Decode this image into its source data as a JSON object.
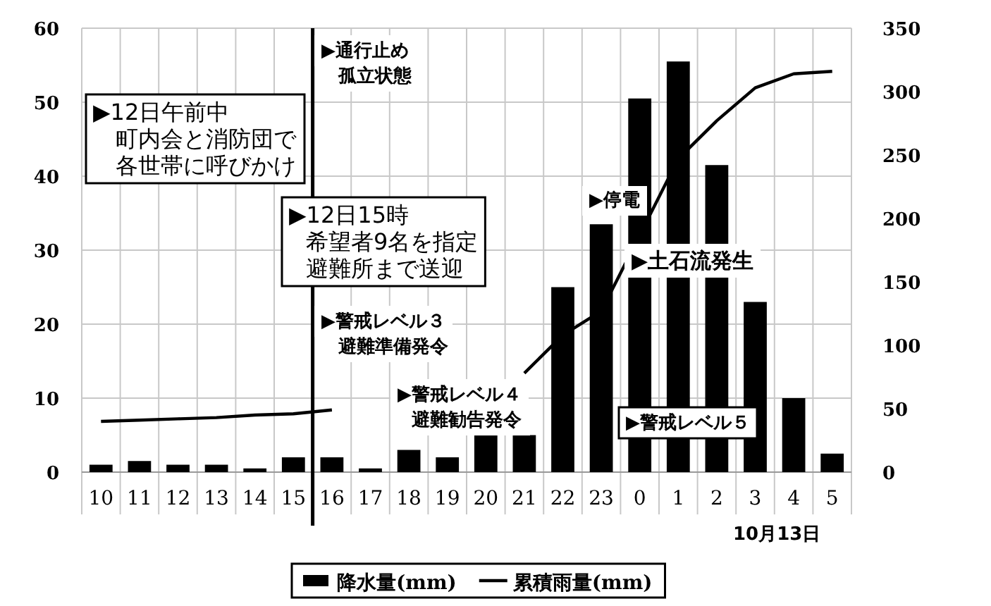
{
  "chart_data": {
    "type": "bar",
    "categories": [
      "10",
      "11",
      "12",
      "13",
      "14",
      "15",
      "16",
      "17",
      "18",
      "19",
      "20",
      "21",
      "22",
      "23",
      "0",
      "1",
      "2",
      "3",
      "4",
      "5"
    ],
    "series": [
      {
        "name": "降水量(mm)",
        "color": "#000000",
        "values": [
          1,
          1.5,
          1,
          1,
          0.5,
          2,
          2,
          0.5,
          3,
          2,
          5,
          5,
          25,
          33.5,
          50.5,
          55.5,
          41.5,
          23,
          10,
          2.5
        ]
      },
      {
        "name": "累積雨量(mm)",
        "type": "line",
        "axis": "y2",
        "color": "#000000",
        "values": [
          40,
          41,
          42,
          43,
          45,
          46,
          49,
          null,
          null,
          null,
          null,
          78,
          108,
          127,
          187,
          247,
          277,
          303,
          314,
          316
        ]
      }
    ],
    "ylim": [
      0,
      60
    ],
    "yticks": [
      0,
      10,
      20,
      30,
      40,
      50,
      60
    ],
    "y2lim": [
      0,
      350
    ],
    "y2ticks": [
      0,
      50,
      100,
      150,
      200,
      250,
      300,
      350
    ],
    "grid": true,
    "legend": "bottom",
    "marker": "none",
    "line_style": "solid",
    "ref_lines": [
      {
        "axis": "x",
        "value": "16",
        "color": "#000000"
      }
    ],
    "annotations": [
      "▶12日午前中",
      "町内会と消防団で",
      "各世帯に呼びかけ",
      "▶通行止め",
      "孤立状態",
      "▶12日15時",
      "希望者9名を指定",
      "避難所まで送迎",
      "▶警戒レベル３",
      "避難準備発令",
      "▶警戒レベル４",
      "避難勧告発令",
      "▶停電",
      "▶土石流発生",
      "▶警戒レベル５",
      "10月13日"
    ]
  }
}
